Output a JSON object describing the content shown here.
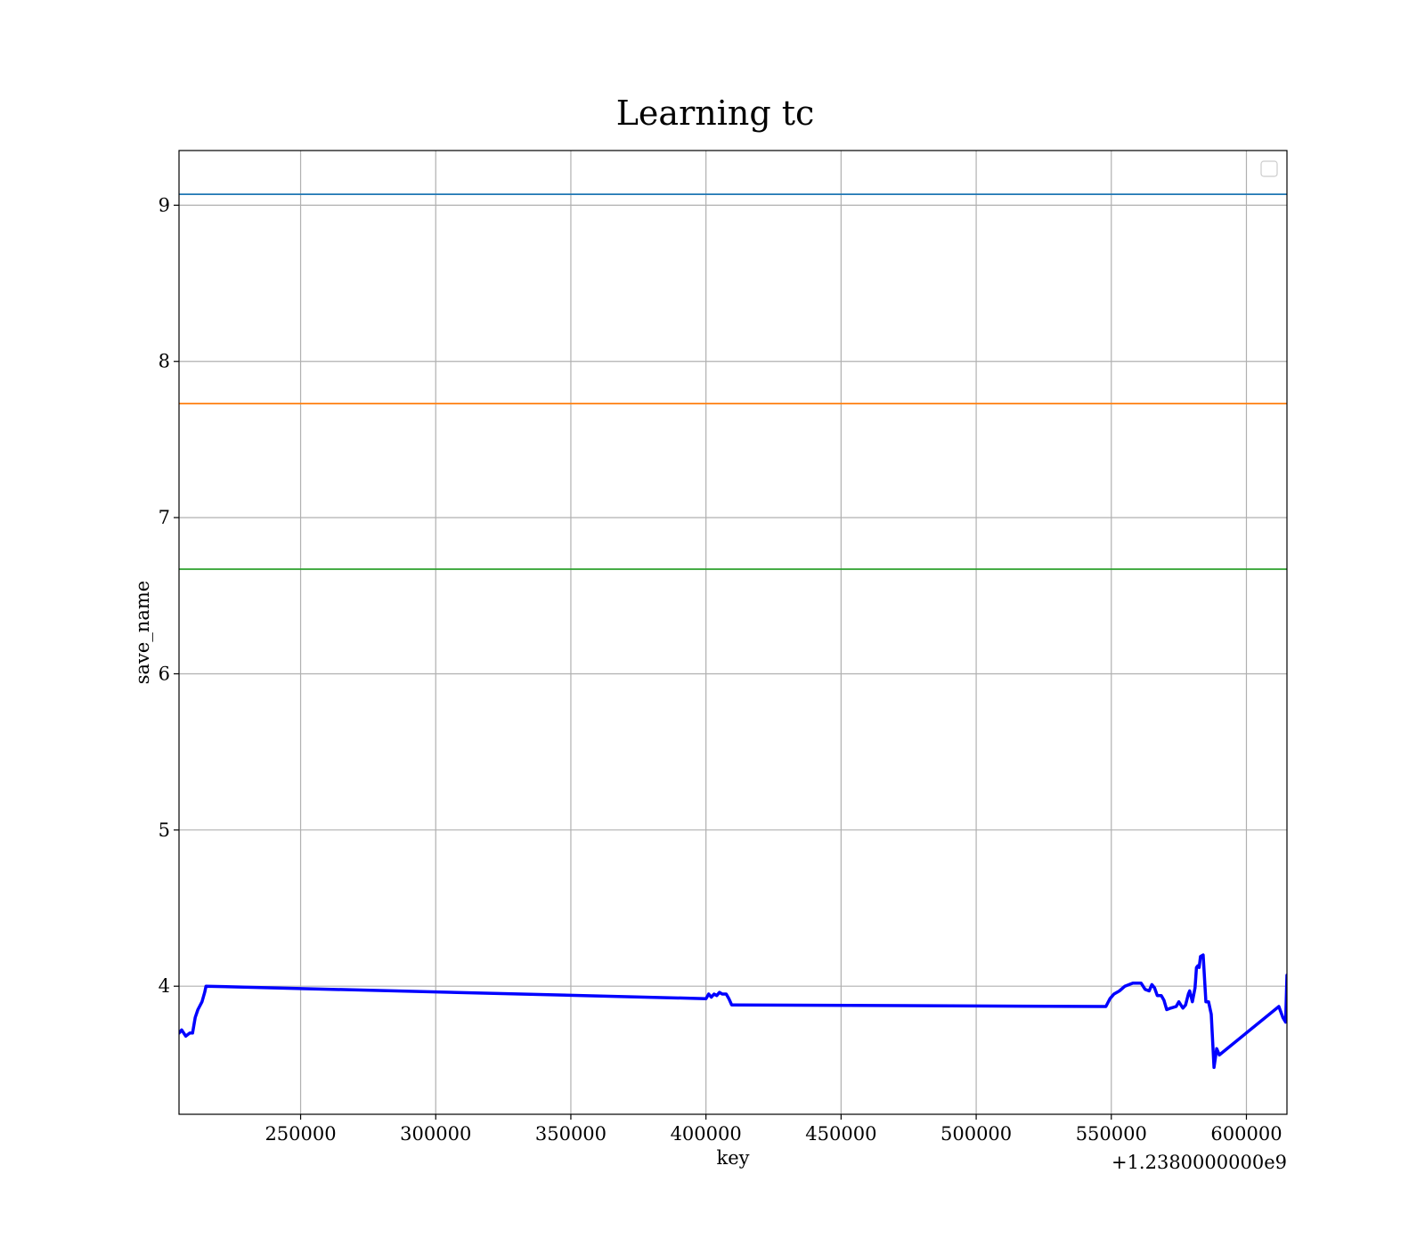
{
  "chart_data": {
    "type": "line",
    "title": "Learning tc",
    "xlabel": "key",
    "ylabel": "save_name",
    "x_offset_label": "+1.2380000000e9",
    "xlim": [
      205000,
      615000
    ],
    "ylim": [
      3.18,
      9.35
    ],
    "x_ticks": [
      250000,
      300000,
      350000,
      400000,
      450000,
      500000,
      550000,
      600000
    ],
    "x_tick_labels": [
      "250000",
      "300000",
      "350000",
      "400000",
      "450000",
      "500000",
      "550000",
      "600000"
    ],
    "y_ticks": [
      4,
      5,
      6,
      7,
      8,
      9
    ],
    "y_tick_labels": [
      "4",
      "5",
      "6",
      "7",
      "8",
      "9"
    ],
    "grid": true,
    "legend": {
      "placement": "top-right",
      "entries": []
    },
    "horizontal_lines": [
      {
        "y": 9.07,
        "color": "#1f77b4"
      },
      {
        "y": 7.73,
        "color": "#ff7f0e"
      },
      {
        "y": 6.67,
        "color": "#2ca02c"
      }
    ],
    "series": [
      {
        "color": "#0000ff",
        "x": [
          205000,
          206000,
          207500,
          209000,
          210000,
          211000,
          212000,
          213500,
          214500,
          215000,
          400000,
          401000,
          402000,
          403000,
          404000,
          405000,
          406000,
          407500,
          408500,
          409500,
          410000,
          548000,
          549500,
          551000,
          553000,
          555000,
          558000,
          561000,
          562500,
          564000,
          565000,
          566000,
          567000,
          568500,
          569500,
          570500,
          572000,
          574000,
          575000,
          576500,
          577500,
          578500,
          579000,
          580000,
          581000,
          581500,
          582000,
          582500,
          583000,
          584000,
          585000,
          586000,
          587000,
          588000,
          589000,
          590000,
          612000,
          613500,
          614500,
          615000
        ],
        "y": [
          3.7,
          3.72,
          3.68,
          3.7,
          3.7,
          3.8,
          3.85,
          3.9,
          3.96,
          4.0,
          3.92,
          3.95,
          3.93,
          3.95,
          3.94,
          3.96,
          3.95,
          3.95,
          3.92,
          3.88,
          3.88,
          3.87,
          3.92,
          3.95,
          3.97,
          4.0,
          4.02,
          4.02,
          3.98,
          3.97,
          4.01,
          3.99,
          3.94,
          3.94,
          3.91,
          3.85,
          3.86,
          3.87,
          3.9,
          3.86,
          3.88,
          3.95,
          3.97,
          3.9,
          3.99,
          4.12,
          4.13,
          4.12,
          4.19,
          4.2,
          3.9,
          3.9,
          3.82,
          3.48,
          3.6,
          3.56,
          3.87,
          3.8,
          3.77,
          4.07
        ]
      }
    ]
  }
}
